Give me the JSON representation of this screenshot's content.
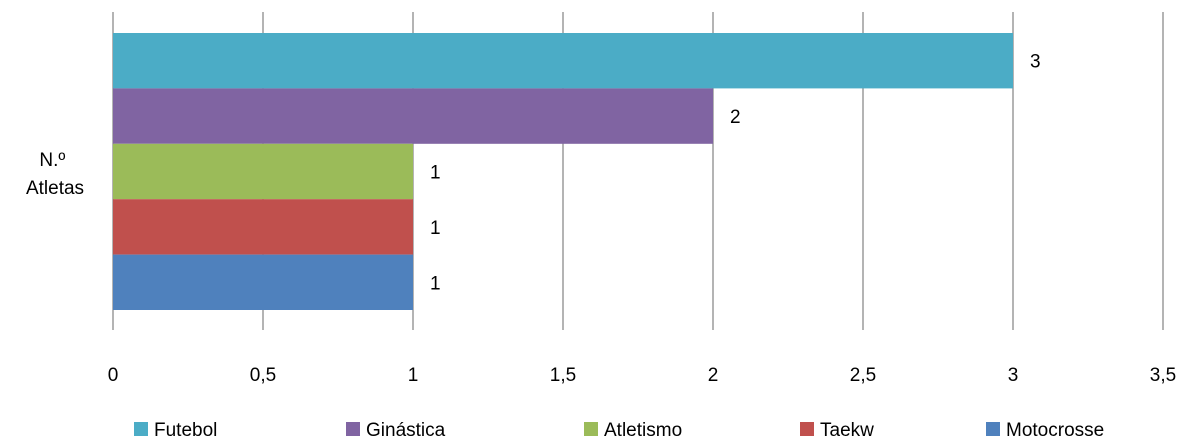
{
  "chart_data": {
    "type": "bar",
    "orientation": "horizontal",
    "categories": [
      "N.º Atletas"
    ],
    "category_lines": [
      "N.º",
      "Atletas"
    ],
    "series": [
      {
        "name": "Futebol",
        "values": [
          3
        ],
        "color": "#4bacc6"
      },
      {
        "name": "Ginástica",
        "values": [
          2
        ],
        "color": "#8064a2"
      },
      {
        "name": "Atletismo",
        "values": [
          1
        ],
        "color": "#9bbb59"
      },
      {
        "name": "Taekw",
        "values": [
          1
        ],
        "color": "#c0504d"
      },
      {
        "name": "Motocrosse",
        "values": [
          1
        ],
        "color": "#4f81bd"
      }
    ],
    "xlim": [
      0,
      3.5
    ],
    "x_ticks": [
      "0",
      "0,5",
      "1",
      "1,5",
      "2",
      "2,5",
      "3",
      "3,5"
    ],
    "data_labels": [
      "3",
      "2",
      "1",
      "1",
      "1"
    ],
    "grid": "vertical",
    "legend_position": "bottom"
  }
}
